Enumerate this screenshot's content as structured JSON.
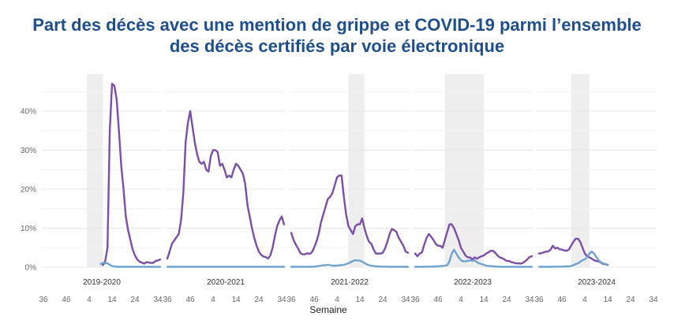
{
  "title_line1": "Part des décès avec une mention de grippe et COVID-19 parmi l’ensemble",
  "title_line2": "des décès certifiés par voie électronique",
  "chart_data": {
    "type": "line",
    "title": "Part des décès avec une mention de grippe et COVID-19 parmi l’ensemble des décès certifiés par voie électronique",
    "xlabel": "Semaine",
    "ylabel": "",
    "ylim": [
      0,
      48
    ],
    "yticks": [
      0,
      10,
      20,
      30,
      40
    ],
    "ytick_labels": [
      "0%",
      "10%",
      "20%",
      "30%",
      "40%"
    ],
    "xtick_weeks": [
      36,
      46,
      4,
      14,
      24,
      34
    ],
    "grid": true,
    "legend": "none",
    "colors": {
      "covid": "#7b4fa6",
      "grippe": "#6fa3cf",
      "shade": "#eeeeee"
    },
    "week_order": "weeks 36..52 then 1..35 (index 0 = week 36)",
    "panels": [
      {
        "season": "2019-2020",
        "epidemic_shade_weeks": [
          3,
          10
        ],
        "series": [
          {
            "name": "COVID-19",
            "start_index": 26,
            "values": [
              0.5,
              1.5,
              5,
              35,
              47,
              46.5,
              43,
              35,
              26,
              20,
              13,
              9.5,
              7,
              4.5,
              3,
              2,
              1.4,
              1.2,
              0.9,
              1.3,
              1.2,
              1.1,
              1.1,
              1.6,
              1.7,
              2
            ]
          },
          {
            "name": "Grippe",
            "start_index": 25,
            "values": [
              0.8,
              1.1,
              1.0,
              1.0,
              0.6,
              0.3,
              0.2,
              0.1,
              0.1,
              0.1,
              0.1,
              0.1,
              0.1,
              0.1,
              0.1,
              0.1,
              0.1,
              0.1,
              0.1,
              0.1,
              0.1,
              0.1,
              0.1,
              0.1,
              0.1,
              0.1,
              0.1
            ]
          }
        ]
      },
      {
        "season": "2020-2021",
        "epidemic_shade_weeks": null,
        "series": [
          {
            "name": "COVID-19",
            "start_index": 0,
            "values": [
              2.2,
              4,
              6,
              6.8,
              7.7,
              8.5,
              12,
              19,
              32,
              37,
              40,
              36,
              32,
              29,
              27,
              26.5,
              27,
              25,
              24.5,
              28.5,
              30,
              30,
              29.5,
              26,
              26.5,
              25,
              23,
              23.5,
              23,
              25,
              26.5,
              26,
              25,
              24,
              21.5,
              16,
              13,
              10,
              7.5,
              5.5,
              4,
              3.2,
              2.7,
              2.6,
              2.2,
              3,
              5,
              8,
              10.5,
              12,
              13,
              11
            ]
          },
          {
            "name": "Grippe",
            "start_index": 0,
            "values": [
              0.1,
              0.1,
              0.1,
              0.1,
              0.1,
              0.1,
              0.1,
              0.1,
              0.1,
              0.1,
              0.1,
              0.1,
              0.1,
              0.1,
              0.1,
              0.1,
              0.1,
              0.1,
              0.1,
              0.1,
              0.1,
              0.1,
              0.1,
              0.1,
              0.1,
              0.1,
              0.1,
              0.1,
              0.1,
              0.1,
              0.1,
              0.1,
              0.1,
              0.1,
              0.1,
              0.1,
              0.1,
              0.1,
              0.1,
              0.1,
              0.1,
              0.1,
              0.1,
              0.1,
              0.1,
              0.1,
              0.1,
              0.1,
              0.1,
              0.1,
              0.1,
              0.1
            ]
          }
        ]
      },
      {
        "season": "2021-2022",
        "epidemic_shade_weeks": [
          9,
          16
        ],
        "series": [
          {
            "name": "COVID-19",
            "start_index": 0,
            "values": [
              8.8,
              7,
              5.8,
              4.8,
              3.6,
              3.3,
              3.3,
              3.6,
              3.4,
              3.8,
              5,
              6.5,
              8.5,
              11.5,
              13.5,
              15.5,
              17.5,
              18,
              19,
              21,
              23,
              23.5,
              23.5,
              18,
              13.5,
              10.5,
              9.5,
              8.5,
              10.5,
              11,
              11,
              12.5,
              10,
              8,
              6.5,
              6,
              4.5,
              3.5,
              3.5,
              3.5,
              3.7,
              4.8,
              6.5,
              8.5,
              9.8,
              9.5,
              9,
              7.5,
              6.5,
              5.5,
              4,
              3.7
            ]
          },
          {
            "name": "Grippe",
            "start_index": 0,
            "values": [
              0.1,
              0.1,
              0.1,
              0.1,
              0.1,
              0.1,
              0.1,
              0.1,
              0.1,
              0.1,
              0.15,
              0.2,
              0.3,
              0.4,
              0.5,
              0.5,
              0.6,
              0.5,
              0.4,
              0.4,
              0.4,
              0.5,
              0.5,
              0.6,
              0.8,
              1.0,
              1.3,
              1.6,
              1.8,
              1.7,
              1.7,
              1.4,
              1.1,
              0.7,
              0.5,
              0.4,
              0.3,
              0.2,
              0.2,
              0.15,
              0.15,
              0.15,
              0.1,
              0.1,
              0.1,
              0.1,
              0.1,
              0.1,
              0.1,
              0.1,
              0.1,
              0.1
            ]
          }
        ]
      },
      {
        "season": "2022-2023",
        "epidemic_shade_weeks": [
          49,
          14
        ],
        "series": [
          {
            "name": "COVID-19",
            "start_index": 0,
            "values": [
              3.5,
              2.8,
              3.5,
              3.8,
              5.8,
              7.5,
              8.5,
              7.8,
              7,
              6,
              5.5,
              5.5,
              5,
              7,
              9,
              11,
              11,
              10,
              8.5,
              7,
              5,
              4,
              3,
              2.5,
              2.5,
              2,
              2.5,
              2.2,
              2.5,
              2.8,
              3,
              3.5,
              3.8,
              4.2,
              4.2,
              3.7,
              3,
              2.5,
              2.3,
              2,
              1.6,
              1.6,
              1.3,
              1.2,
              1.0,
              1.0,
              0.9,
              1.1,
              1.5,
              2.0,
              2.6,
              2.8
            ]
          },
          {
            "name": "Grippe",
            "start_index": 0,
            "values": [
              0.1,
              0.1,
              0.1,
              0.1,
              0.1,
              0.15,
              0.15,
              0.15,
              0.15,
              0.2,
              0.2,
              0.3,
              0.3,
              0.4,
              0.5,
              1.5,
              3.5,
              4.5,
              3.5,
              2.5,
              1.8,
              1.5,
              1.5,
              1.6,
              1.8,
              1.6,
              1.8,
              1.3,
              1.0,
              0.8,
              0.6,
              0.4,
              0.3,
              0.3,
              0.2,
              0.2,
              0.15,
              0.1,
              0.1,
              0.1,
              0.1,
              0.1,
              0.1,
              0.1,
              0.1,
              0.1,
              0.1,
              0.1,
              0.1,
              0.1,
              0.1,
              0.1
            ]
          }
        ]
      },
      {
        "season": "2023-2024",
        "epidemic_shade_weeks": [
          50,
          6
        ],
        "series": [
          {
            "name": "COVID-19",
            "start_index": 0,
            "values": [
              3.5,
              3.6,
              3.8,
              4.0,
              4.0,
              4.5,
              5.5,
              4.8,
              5.0,
              4.6,
              4.5,
              4.3,
              4.2,
              4.5,
              5.5,
              6.5,
              7.3,
              7.3,
              6.5,
              5.0,
              3.5,
              2.8,
              2.5,
              2.2,
              1.8,
              1.6,
              1.5,
              1.2,
              0.8,
              0.8,
              0.6
            ]
          },
          {
            "name": "Grippe",
            "start_index": 0,
            "values": [
              0.1,
              0.1,
              0.1,
              0.1,
              0.1,
              0.1,
              0.1,
              0.15,
              0.15,
              0.15,
              0.15,
              0.2,
              0.2,
              0.2,
              0.3,
              0.5,
              0.8,
              1.0,
              1.4,
              1.8,
              2.0,
              2.6,
              3.5,
              4.0,
              3.5,
              2.6,
              1.8,
              1.3,
              1.0,
              0.7,
              0.5
            ]
          }
        ]
      }
    ]
  }
}
